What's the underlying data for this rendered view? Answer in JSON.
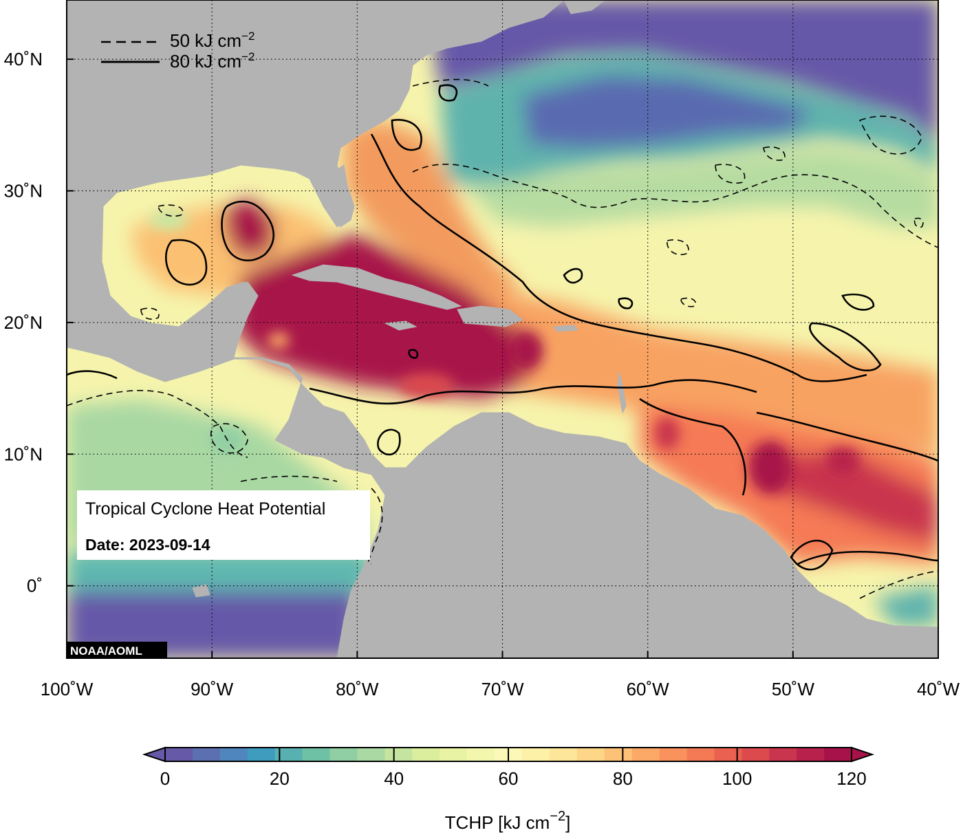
{
  "map": {
    "title": "Tropical Cyclone Heat Potential",
    "date": "Date: 2023-09-14",
    "credit": "NOAA/AOML",
    "legend": [
      {
        "style": "dashed",
        "label": "50 kJ cm",
        "sup": "−2"
      },
      {
        "style": "solid",
        "label": "80 kJ cm",
        "sup": "−2"
      }
    ],
    "lat_ticks": [
      {
        "value": 40,
        "label": "40˚N"
      },
      {
        "value": 30,
        "label": "30˚N"
      },
      {
        "value": 20,
        "label": "20˚N"
      },
      {
        "value": 10,
        "label": "10˚N"
      },
      {
        "value": 0,
        "label": "0˚"
      }
    ],
    "lon_ticks": [
      {
        "value": -100,
        "label": "100˚W"
      },
      {
        "value": -90,
        "label": "90˚W"
      },
      {
        "value": -80,
        "label": "80˚W"
      },
      {
        "value": -70,
        "label": "70˚W"
      },
      {
        "value": -60,
        "label": "60˚W"
      },
      {
        "value": -50,
        "label": "50˚W"
      },
      {
        "value": -40,
        "label": "40˚W"
      }
    ],
    "extent": {
      "lon_min": -100,
      "lon_max": -40,
      "lat_min": -5.5,
      "lat_max": 44.5
    },
    "colors": {
      "land": "#b3b3b3",
      "low": "#6659a8",
      "high": "#a8124a"
    }
  },
  "colorbar": {
    "title": "TCHP [kJ cm",
    "title_sup": "−2",
    "title_end": "]",
    "min": 0,
    "max": 120,
    "ticks": [
      0,
      20,
      40,
      60,
      80,
      100,
      120
    ],
    "colors": [
      "#6659a8",
      "#5c6fb1",
      "#4f86bd",
      "#3f9cbf",
      "#58b1b0",
      "#6fc1a5",
      "#8fcfa3",
      "#aad9a3",
      "#c4e4a0",
      "#daee9e",
      "#e8f4a3",
      "#f3f7ad",
      "#fbf8b8",
      "#fdf1a7",
      "#fde699",
      "#fdd687",
      "#fdc177",
      "#fca968",
      "#f9925d",
      "#f47a55",
      "#ea6150",
      "#dc4a4e",
      "#c9344e",
      "#b8214c",
      "#a8124a"
    ]
  }
}
